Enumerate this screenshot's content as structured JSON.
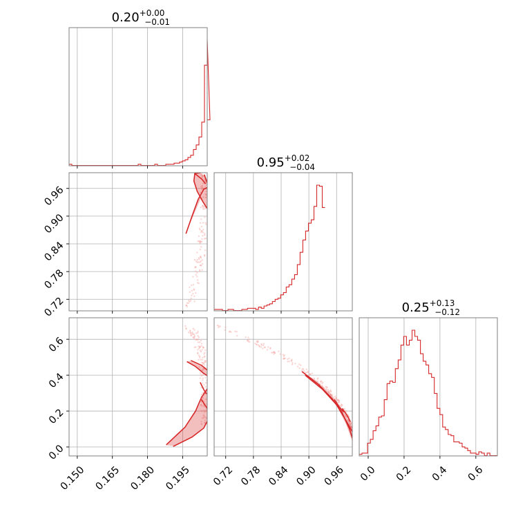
{
  "chart_data": {
    "type": "corner",
    "color": "#d62728",
    "grid": true,
    "titles": [
      {
        "base": "0.20",
        "sup": "+0.00",
        "sub": "−0.01"
      },
      {
        "base": "0.95",
        "sup": "+0.02",
        "sub": "−0.04"
      },
      {
        "base": "0.25",
        "sup": "+0.13",
        "sub": "−0.12"
      }
    ],
    "params": [
      {
        "range": [
          0.1465,
          0.2055
        ],
        "ticks": [
          0.15,
          0.165,
          0.18,
          0.195
        ],
        "tick_labels": [
          "0.150",
          "0.165",
          "0.180",
          "0.195"
        ]
      },
      {
        "range": [
          0.695,
          0.994
        ],
        "ticks": [
          0.72,
          0.78,
          0.84,
          0.9,
          0.96
        ],
        "tick_labels": [
          "0.72",
          "0.78",
          "0.84",
          "0.90",
          "0.96"
        ]
      },
      {
        "range": [
          -0.05,
          0.72
        ],
        "ticks": [
          0.0,
          0.2,
          0.4,
          0.6
        ],
        "tick_labels": [
          "0.0",
          "0.2",
          "0.4",
          "0.6"
        ]
      }
    ],
    "histograms": [
      {
        "edges_start": 0.1465,
        "bin_width": 0.00118,
        "counts": [
          1,
          0,
          0,
          0,
          0,
          0,
          0,
          0,
          0,
          0,
          0,
          0,
          0,
          0,
          0,
          0,
          0,
          0,
          0,
          0,
          0,
          0,
          0,
          0,
          0,
          1,
          0,
          0,
          0,
          0,
          0,
          1,
          0,
          0,
          0,
          1,
          1,
          1,
          2,
          2,
          3,
          4,
          5,
          7,
          9,
          14,
          18,
          25,
          38,
          88,
          110,
          40
        ]
      },
      {
        "edges_start": 0.695,
        "bin_width": 0.006,
        "counts": [
          1,
          1,
          1,
          0,
          0,
          1,
          1,
          0,
          0,
          0,
          1,
          1,
          2,
          2,
          2,
          1,
          3,
          2,
          4,
          5,
          6,
          8,
          10,
          11,
          14,
          16,
          21,
          23,
          28,
          32,
          41,
          52,
          63,
          71,
          78,
          81,
          93,
          112,
          111,
          92
        ]
      },
      {
        "edges_start": -0.05,
        "bin_width": 0.0155,
        "counts": [
          1,
          2,
          2,
          10,
          13,
          20,
          24,
          31,
          32,
          45,
          58,
          60,
          59,
          70,
          77,
          89,
          96,
          89,
          93,
          101,
          96,
          93,
          82,
          76,
          73,
          66,
          63,
          50,
          38,
          33,
          23,
          21,
          17,
          16,
          11,
          11,
          10,
          7,
          6,
          4,
          2,
          2,
          1,
          3,
          2,
          0,
          2,
          0,
          0,
          0
        ]
      }
    ],
    "contour_levels": [
      0.39,
      0.86,
      0.99
    ]
  }
}
